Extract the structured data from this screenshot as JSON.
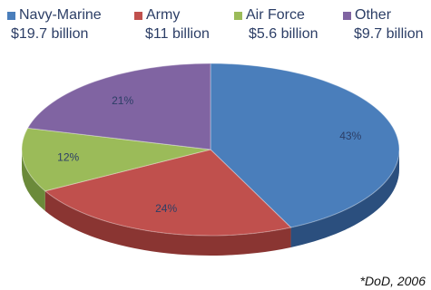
{
  "chart_data": {
    "type": "pie",
    "style": "3d",
    "categories": [
      "Navy-Marine",
      "Army",
      "Air Force",
      "Other"
    ],
    "amounts": [
      "$19.7 billion",
      "$11 billion",
      "$5.6 billion",
      "$9.7 billion"
    ],
    "values": [
      43,
      24,
      12,
      21
    ],
    "value_labels": [
      "43%",
      "24%",
      "12%",
      "21%"
    ],
    "colors": [
      "#4a7ebb",
      "#c0504d",
      "#9bbb59",
      "#8064a2"
    ],
    "side_colors": [
      "#2b4f7e",
      "#8a3532",
      "#6b8a3a",
      "#574675"
    ],
    "legend_position": "top",
    "note": "*DoD, 2006"
  }
}
